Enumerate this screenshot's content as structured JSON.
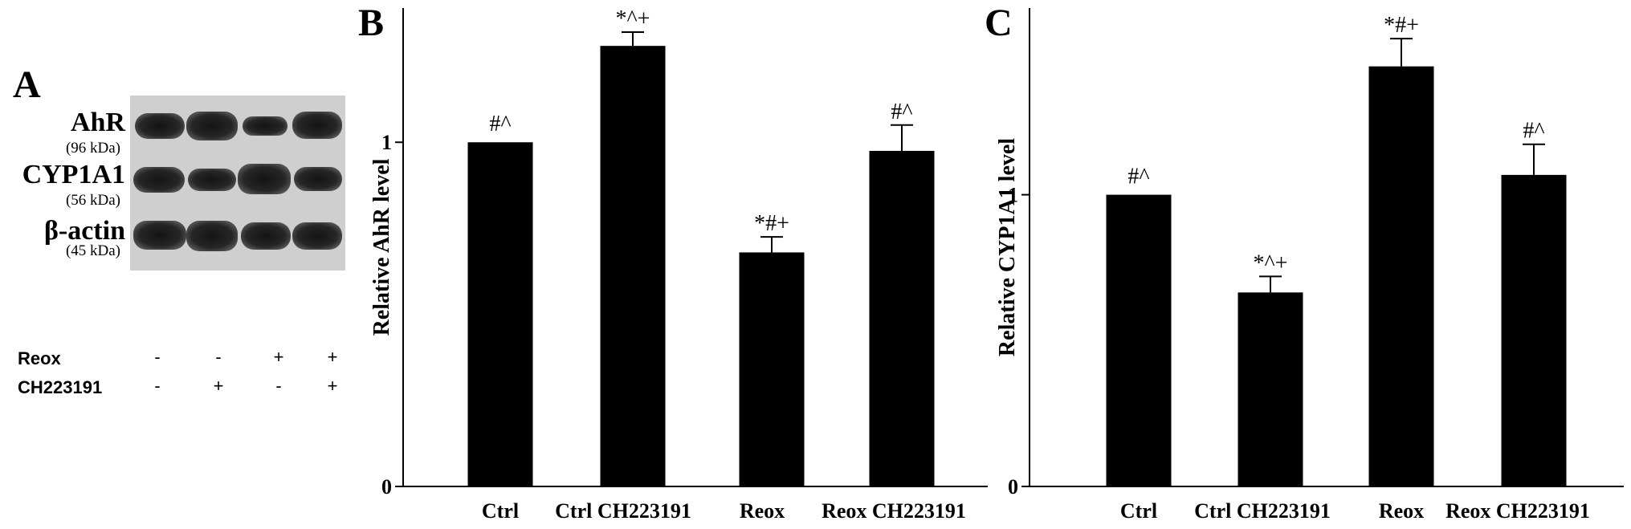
{
  "panel_a": {
    "letter": "A",
    "blots": [
      {
        "name": "AhR",
        "kda": "(96 kDa)"
      },
      {
        "name": "CYP1A1",
        "kda": "(56 kDa)"
      },
      {
        "name": "β-actin",
        "kda": "(45 kDa)"
      }
    ],
    "conditions": [
      {
        "label": "Reox",
        "signs": [
          "-",
          "-",
          "+",
          "+"
        ]
      },
      {
        "label": "CH223191",
        "signs": [
          "-",
          "+",
          "-",
          "+"
        ]
      }
    ]
  },
  "chart_data": [
    {
      "panel": "B",
      "type": "bar",
      "categories": [
        "Ctrl",
        "Ctrl CH223191",
        "Reox",
        "Reox CH223191"
      ],
      "values": [
        1.0,
        1.28,
        0.68,
        0.975
      ],
      "errors": [
        0,
        0.04,
        0.045,
        0.075
      ],
      "annotations": [
        "#^",
        "*^+",
        "*#+",
        "#^"
      ],
      "ylabel": "Relative AhR level",
      "yticks": [
        "0",
        "1"
      ],
      "ylim": [
        0,
        1.39
      ],
      "bar_color": "#000000"
    },
    {
      "panel": "C",
      "type": "bar",
      "categories": [
        "Ctrl",
        "Ctrl CH223191",
        "Reox",
        "Reox CH223191"
      ],
      "values": [
        1.0,
        0.665,
        1.44,
        1.068
      ],
      "errors": [
        0,
        0.055,
        0.095,
        0.105
      ],
      "annotations": [
        "#^",
        "*^+",
        "*#+",
        "#^"
      ],
      "ylabel": "Relative CYP1A1 level",
      "yticks": [
        "0",
        "1"
      ],
      "ylim": [
        0,
        1.64
      ],
      "bar_color": "#000000"
    }
  ]
}
